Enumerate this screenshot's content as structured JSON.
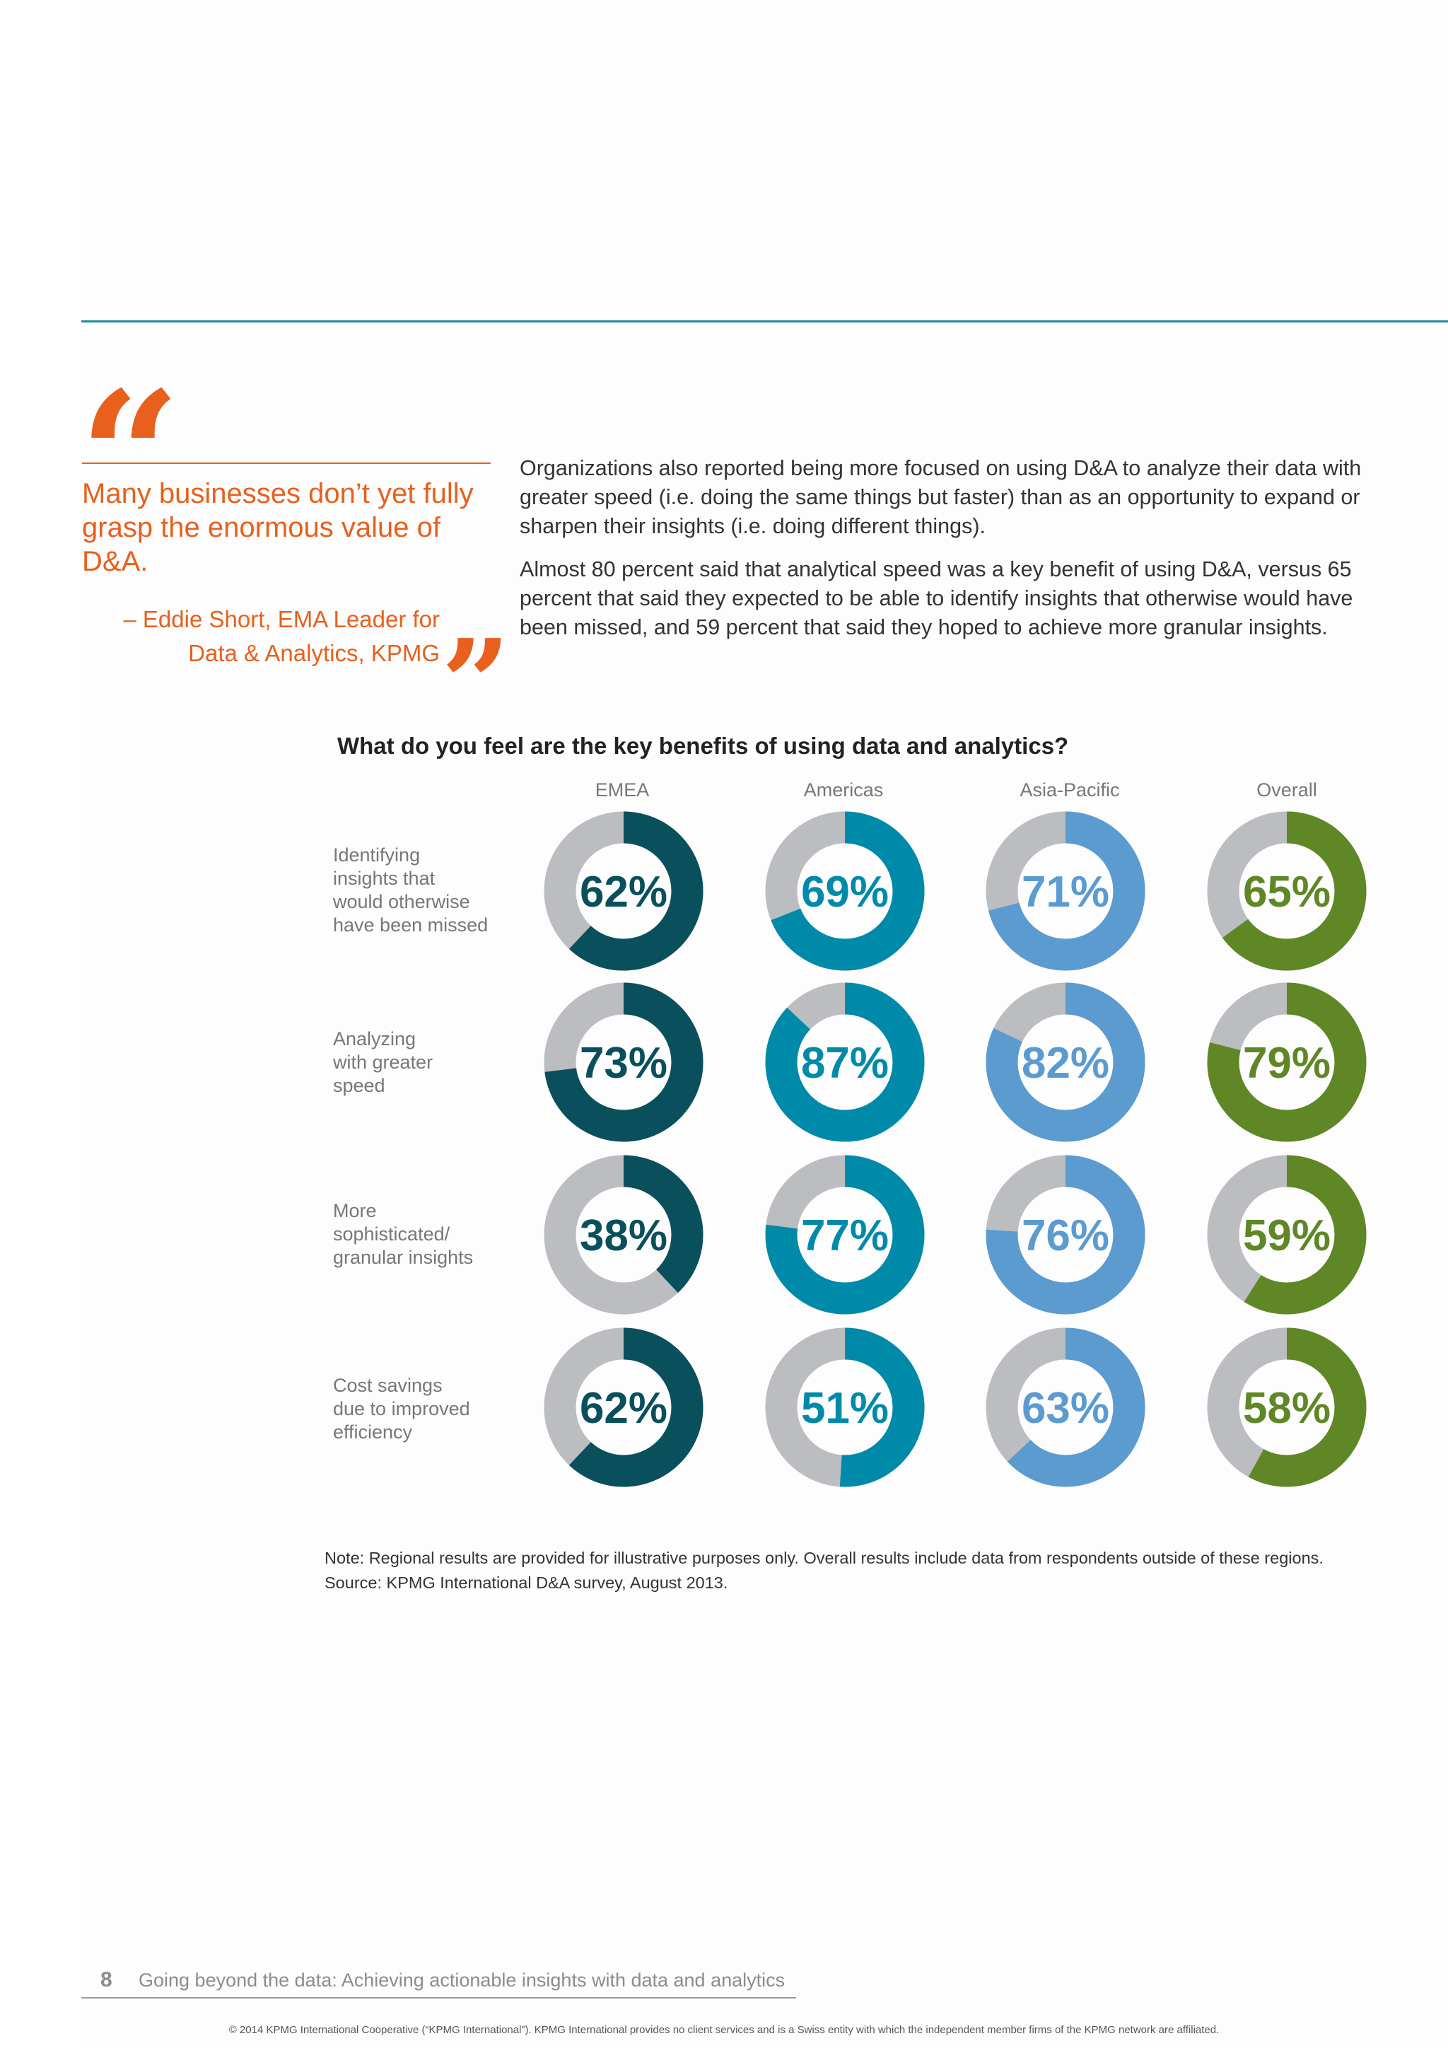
{
  "quote": {
    "text": "Many businesses don’t yet fully grasp the enormous value of D&A.",
    "attribution_line1": "– Eddie Short, EMA Leader for",
    "attribution_line2": "Data & Analytics, KPMG"
  },
  "body": {
    "paragraph1": "Organizations also reported being more focused on using D&A to analyze their data with greater speed (i.e. doing the same things but faster) than as an opportunity to expand or sharpen their insights (i.e. doing different things).",
    "paragraph2": "Almost 80 percent said that analytical speed was a key benefit of using D&A, versus 65 percent that said they expected to be able to identify insights that otherwise would have been missed, and 59 percent that said they hoped to achieve more granular insights."
  },
  "chart_data": {
    "type": "donut-grid",
    "title": "What do you feel are the key benefits of using data and analytics?",
    "regions": [
      "EMEA",
      "Americas",
      "Asia-Pacific",
      "Overall"
    ],
    "region_colors": [
      "#0a4f5c",
      "#008aaa",
      "#5b9bd0",
      "#5f8726"
    ],
    "remainder_color": "#bcbdc0",
    "categories": [
      "Identifying insights that would otherwise have been missed",
      "Analyzing with greater speed",
      "More sophisticated/ granular insights",
      "Cost savings due to improved efficiency"
    ],
    "values": [
      [
        62,
        69,
        71,
        65
      ],
      [
        73,
        87,
        82,
        79
      ],
      [
        38,
        77,
        76,
        59
      ],
      [
        62,
        51,
        63,
        58
      ]
    ],
    "unit": "%"
  },
  "row_labels": [
    [
      "Identifying",
      "insights that",
      "would otherwise",
      "have been missed"
    ],
    [
      "Analyzing",
      "with greater",
      "speed"
    ],
    [
      "More",
      "sophisticated/",
      "granular insights"
    ],
    [
      "Cost savings",
      "due to improved",
      "efficiency"
    ]
  ],
  "notes": {
    "note": "Note: Regional results are provided for illustrative purposes only. Overall results include data from respondents outside of these regions.",
    "source": "Source: KPMG International D&A survey, August 2013."
  },
  "footer": {
    "page_number": "8",
    "title": "Going beyond the data: Achieving actionable insights with data and analytics",
    "copyright": "© 2014 KPMG International Cooperative (“KPMG International”). KPMG International provides no client services and is a Swiss entity with which the independent member firms of the KPMG network are affiliated."
  }
}
